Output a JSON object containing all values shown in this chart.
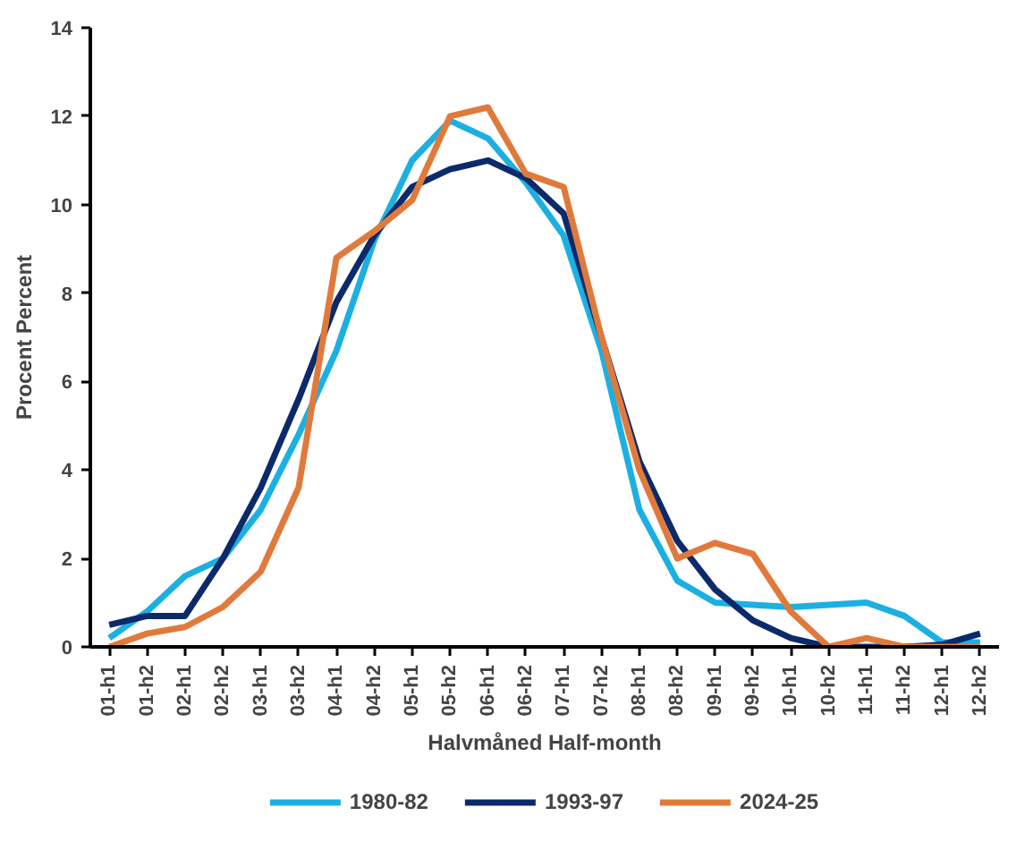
{
  "chart_data": {
    "type": "line",
    "xlabel": "Halvmåned Half-month",
    "ylabel": "Procent Percent",
    "categories": [
      "01-h1",
      "01-h2",
      "02-h1",
      "02-h2",
      "03-h1",
      "03-h2",
      "04-h1",
      "04-h2",
      "05-h1",
      "05-h2",
      "06-h1",
      "06-h2",
      "07-h1",
      "07-h2",
      "08-h1",
      "08-h2",
      "09-h1",
      "09-h2",
      "10-h1",
      "10-h2",
      "11-h1",
      "11-h2",
      "12-h1",
      "12-h2"
    ],
    "series": [
      {
        "name": "1980-82",
        "color": "#1cb0e2",
        "values": [
          0.2,
          0.8,
          1.6,
          2.0,
          3.1,
          4.8,
          6.7,
          9.2,
          11.0,
          11.9,
          11.5,
          10.5,
          9.3,
          6.7,
          3.1,
          1.5,
          1.0,
          0.95,
          0.9,
          0.95,
          1.0,
          0.7,
          0.1,
          0.1
        ]
      },
      {
        "name": "1993-97",
        "color": "#0c2a6a",
        "values": [
          0.5,
          0.7,
          0.7,
          2.0,
          3.6,
          5.6,
          7.8,
          9.3,
          10.4,
          10.8,
          11.0,
          10.6,
          9.8,
          7.0,
          4.2,
          2.4,
          1.3,
          0.6,
          0.2,
          0.0,
          0.0,
          0.0,
          0.05,
          0.3
        ]
      },
      {
        "name": "2024-25",
        "color": "#e07a3c",
        "values": [
          0.0,
          0.3,
          0.45,
          0.9,
          1.7,
          3.6,
          8.8,
          9.4,
          10.1,
          12.0,
          12.2,
          10.7,
          10.4,
          7.0,
          4.0,
          2.0,
          2.35,
          2.1,
          0.8,
          0.0,
          0.2,
          0.0,
          0.0,
          0.0
        ]
      }
    ],
    "ylim": [
      0,
      14
    ],
    "yticks": [
      0,
      2,
      4,
      6,
      8,
      10,
      12,
      14
    ],
    "grid": false,
    "legend": "bottom",
    "marker": "none",
    "line_style": "solid"
  }
}
